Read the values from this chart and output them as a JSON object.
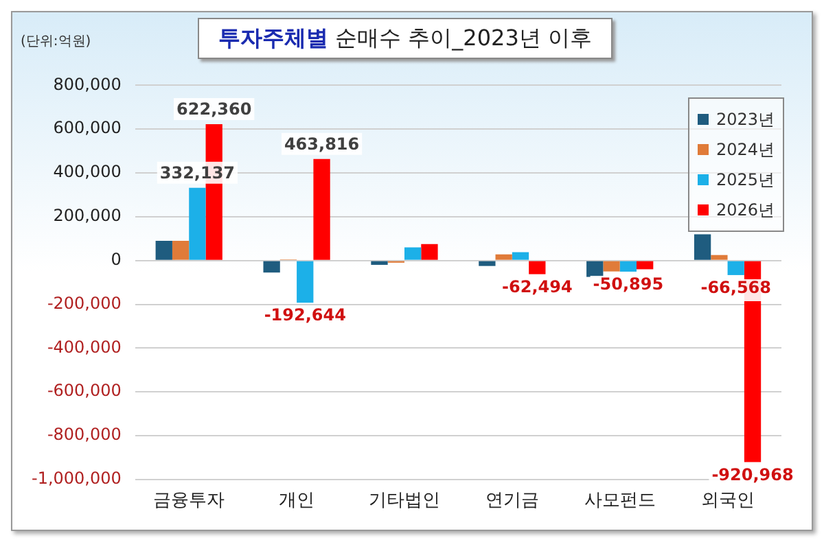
{
  "chart_data": {
    "type": "bar",
    "title": "투자주체별 순매수 추이_2023년 이후",
    "annotations": [
      "(단위:억원)"
    ],
    "categories": [
      "금융투자",
      "개인",
      "기타법인",
      "연기금",
      "사모펀드",
      "외국인"
    ],
    "series": [
      {
        "name": "2023년",
        "color": "#1f5c7f",
        "values": [
          90000,
          -55000,
          -20000,
          -25000,
          -75000,
          120000
        ]
      },
      {
        "name": "2024년",
        "color": "#e07b39",
        "values": [
          90000,
          5000,
          -10000,
          28000,
          -50000,
          25000
        ]
      },
      {
        "name": "2025년",
        "color": "#1cb0e8",
        "values": [
          332137,
          -192644,
          60000,
          38000,
          -50895,
          -66568
        ],
        "value_labels": [
          "332,137",
          "-192,644",
          null,
          null,
          "-50,895",
          "-66,568"
        ]
      },
      {
        "name": "2026년",
        "color": "#ff0000",
        "values": [
          622360,
          463816,
          75000,
          -62494,
          -40000,
          -920968
        ],
        "value_labels": [
          "622,360",
          "463,816",
          null,
          "-62,494",
          null,
          "-920,968"
        ]
      }
    ],
    "ylim": [
      -1000000,
      800000
    ],
    "yticks": [
      {
        "value": -1000000,
        "label": "-1,000,000"
      },
      {
        "value": -800000,
        "label": "-800,000"
      },
      {
        "value": -600000,
        "label": "-600,000"
      },
      {
        "value": -400000,
        "label": "-400,000"
      },
      {
        "value": -200000,
        "label": "-200,000"
      },
      0,
      {
        "value": 200000,
        "label": "200,000"
      },
      {
        "value": 400000,
        "label": "400,000"
      },
      {
        "value": 600000,
        "label": "600,000"
      },
      {
        "value": 800000,
        "label": "800,000"
      }
    ],
    "grid": "y",
    "legend": "top right"
  }
}
